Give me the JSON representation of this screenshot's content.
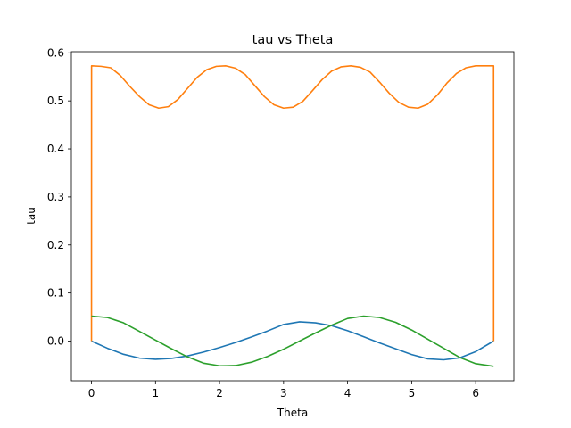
{
  "chart_data": {
    "type": "line",
    "title": "tau vs Theta",
    "xlabel": "Theta",
    "ylabel": "tau",
    "xlim": [
      -0.314,
      6.597
    ],
    "ylim": [
      -0.0826,
      0.6024
    ],
    "x_ticks": [
      0,
      1,
      2,
      3,
      4,
      5,
      6
    ],
    "x_tick_labels": [
      "0",
      "1",
      "2",
      "3",
      "4",
      "5",
      "6"
    ],
    "y_ticks": [
      0.0,
      0.1,
      0.2,
      0.3,
      0.4,
      0.5,
      0.6
    ],
    "y_tick_labels": [
      "0.0",
      "0.1",
      "0.2",
      "0.3",
      "0.4",
      "0.5",
      "0.6"
    ],
    "grid": false,
    "legend": "none",
    "series": [
      {
        "color": "#1f77b4",
        "x": [
          0,
          0.25,
          0.5,
          0.75,
          1.0,
          1.25,
          1.5,
          1.75,
          2.0,
          2.25,
          2.5,
          2.75,
          3.0,
          3.25,
          3.5,
          3.75,
          4.0,
          4.25,
          4.5,
          4.75,
          5.0,
          5.25,
          5.5,
          5.75,
          6.0,
          6.28
        ],
        "y": [
          0.0,
          -0.015,
          -0.0275,
          -0.0355,
          -0.038,
          -0.036,
          -0.031,
          -0.023,
          -0.0135,
          -0.003,
          0.0085,
          0.021,
          0.0345,
          0.04,
          0.038,
          0.032,
          0.0215,
          0.009,
          -0.004,
          -0.016,
          -0.028,
          -0.037,
          -0.039,
          -0.035,
          -0.022,
          0.0
        ]
      },
      {
        "color": "#ff7f0e",
        "x": [
          0,
          0.001,
          0.15,
          0.3,
          0.45,
          0.6,
          0.75,
          0.9,
          1.05,
          1.2,
          1.35,
          1.5,
          1.65,
          1.8,
          1.95,
          2.1,
          2.25,
          2.4,
          2.55,
          2.7,
          2.85,
          3.0,
          3.15,
          3.3,
          3.45,
          3.6,
          3.75,
          3.9,
          4.05,
          4.2,
          4.35,
          4.5,
          4.65,
          4.8,
          4.95,
          5.1,
          5.25,
          5.4,
          5.55,
          5.7,
          5.85,
          6.0,
          6.15,
          6.28,
          6.281
        ],
        "y": [
          0.0,
          0.573,
          0.572,
          0.569,
          0.553,
          0.53,
          0.509,
          0.492,
          0.485,
          0.488,
          0.503,
          0.526,
          0.549,
          0.565,
          0.572,
          0.573,
          0.568,
          0.555,
          0.532,
          0.509,
          0.492,
          0.485,
          0.487,
          0.499,
          0.521,
          0.544,
          0.562,
          0.571,
          0.573,
          0.57,
          0.56,
          0.539,
          0.516,
          0.497,
          0.487,
          0.485,
          0.493,
          0.512,
          0.537,
          0.557,
          0.569,
          0.573,
          0.573,
          0.573,
          0.0
        ]
      },
      {
        "color": "#2ca02c",
        "x": [
          0,
          0.25,
          0.5,
          0.75,
          1.0,
          1.25,
          1.5,
          1.75,
          2.0,
          2.25,
          2.5,
          2.75,
          3.0,
          3.25,
          3.5,
          3.75,
          4.0,
          4.25,
          4.5,
          4.75,
          5.0,
          5.25,
          5.5,
          5.75,
          6.0,
          6.28
        ],
        "y": [
          0.052,
          0.049,
          0.038,
          0.02,
          0.002,
          -0.016,
          -0.033,
          -0.046,
          -0.0515,
          -0.051,
          -0.044,
          -0.032,
          -0.017,
          0.0,
          0.017,
          0.033,
          0.047,
          0.052,
          0.049,
          0.039,
          0.023,
          0.004,
          -0.015,
          -0.034,
          -0.047,
          -0.0525
        ]
      }
    ]
  }
}
